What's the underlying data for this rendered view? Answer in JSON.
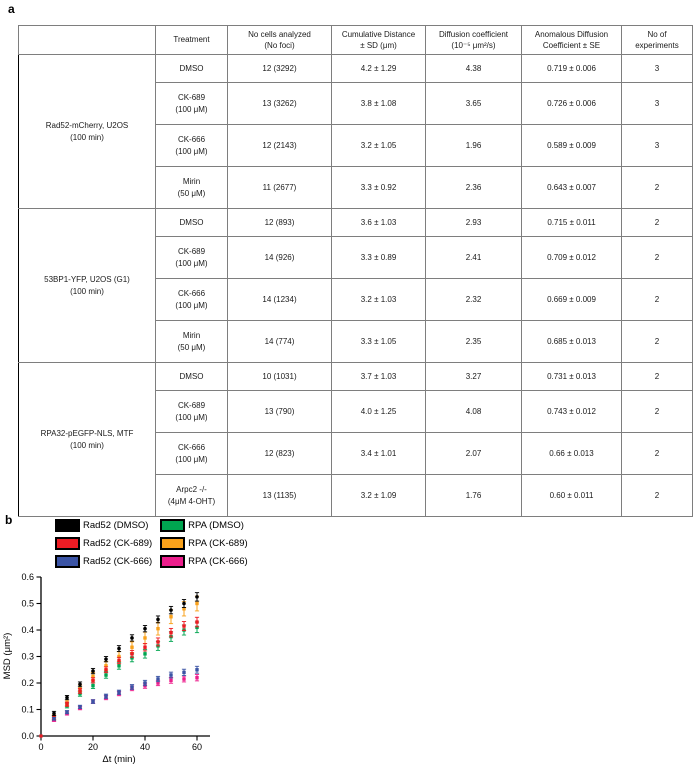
{
  "panel_a_label": "a",
  "panel_b_label": "b",
  "table": {
    "headers": [
      "",
      "Treatment",
      "No cells analyzed\n(No foci)",
      "Cumulative Distance\n± SD (μm)",
      "Diffusion coefficient\n(10⁻⁵ μm²/s)",
      "Anomalous Diffusion\nCoefficient ± SE",
      "No of\nexperiments"
    ],
    "groups": [
      {
        "label": "Rad52-mCherry, U2OS\n(100 min)",
        "rows": [
          {
            "treatment": "DMSO",
            "cells_analyzed": "12 (3292)",
            "cumulative_distance": "4.2 ± 1.29",
            "diffusion_coefficient": "4.38",
            "anomalous_coefficient": "0.719 ± 0.006",
            "experiments": "3"
          },
          {
            "treatment": "CK-689\n(100 μM)",
            "cells_analyzed": "13 (3262)",
            "cumulative_distance": "3.8 ± 1.08",
            "diffusion_coefficient": "3.65",
            "anomalous_coefficient": "0.726 ± 0.006",
            "experiments": "3"
          },
          {
            "treatment": "CK-666\n(100 μM)",
            "cells_analyzed": "12 (2143)",
            "cumulative_distance": "3.2 ± 1.05",
            "diffusion_coefficient": "1.96",
            "anomalous_coefficient": "0.589 ± 0.009",
            "experiments": "3"
          },
          {
            "treatment": "Mirin\n(50 μM)",
            "cells_analyzed": "11 (2677)",
            "cumulative_distance": "3.3 ± 0.92",
            "diffusion_coefficient": "2.36",
            "anomalous_coefficient": "0.643 ± 0.007",
            "experiments": "2"
          }
        ]
      },
      {
        "label": "53BP1-YFP, U2OS (G1)\n(100 min)",
        "rows": [
          {
            "treatment": "DMSO",
            "cells_analyzed": "12 (893)",
            "cumulative_distance": "3.6 ± 1.03",
            "diffusion_coefficient": "2.93",
            "anomalous_coefficient": "0.715 ± 0.011",
            "experiments": "2"
          },
          {
            "treatment": "CK-689\n(100 μM)",
            "cells_analyzed": "14 (926)",
            "cumulative_distance": "3.3 ± 0.89",
            "diffusion_coefficient": "2.41",
            "anomalous_coefficient": "0.709 ± 0.012",
            "experiments": "2"
          },
          {
            "treatment": "CK-666\n(100 μM)",
            "cells_analyzed": "14 (1234)",
            "cumulative_distance": "3.2 ± 1.03",
            "diffusion_coefficient": "2.32",
            "anomalous_coefficient": "0.669 ± 0.009",
            "experiments": "2"
          },
          {
            "treatment": "Mirin\n(50 μM)",
            "cells_analyzed": "14 (774)",
            "cumulative_distance": "3.3 ± 1.05",
            "diffusion_coefficient": "2.35",
            "anomalous_coefficient": "0.685 ± 0.013",
            "experiments": "2"
          }
        ]
      },
      {
        "label": "RPA32-pEGFP-NLS, MTF\n(100 min)",
        "rows": [
          {
            "treatment": "DMSO",
            "cells_analyzed": "10 (1031)",
            "cumulative_distance": "3.7 ± 1.03",
            "diffusion_coefficient": "3.27",
            "anomalous_coefficient": "0.731 ± 0.013",
            "experiments": "2"
          },
          {
            "treatment": "CK-689\n(100 μM)",
            "cells_analyzed": "13 (790)",
            "cumulative_distance": "4.0 ± 1.25",
            "diffusion_coefficient": "4.08",
            "anomalous_coefficient": "0.743 ± 0.012",
            "experiments": "2"
          },
          {
            "treatment": "CK-666\n(100 μM)",
            "cells_analyzed": "12 (823)",
            "cumulative_distance": "3.4 ± 1.01",
            "diffusion_coefficient": "2.07",
            "anomalous_coefficient": "0.66 ± 0.013",
            "experiments": "2"
          },
          {
            "treatment": "Arpc2 -/-\n(4μM 4-OHT)",
            "cells_analyzed": "13 (1135)",
            "cumulative_distance": "3.2 ± 1.09",
            "diffusion_coefficient": "1.76",
            "anomalous_coefficient": "0.60 ± 0.011",
            "experiments": "2"
          }
        ]
      }
    ]
  },
  "chart_data": {
    "type": "scatter",
    "title": "",
    "xlabel": "Δt (min)",
    "ylabel": "MSD (μm²)",
    "xlim": [
      0,
      65
    ],
    "ylim": [
      0,
      0.6
    ],
    "xticks": [
      0,
      20,
      40,
      60
    ],
    "yticks": [
      0.0,
      0.1,
      0.2,
      0.3,
      0.4,
      0.5,
      0.6
    ],
    "grid": false,
    "legend_position": "above-left",
    "x": [
      5,
      10,
      15,
      20,
      25,
      30,
      35,
      40,
      45,
      50,
      55,
      60
    ],
    "series": [
      {
        "name": "Rad52 (DMSO)",
        "color": "#000000",
        "marker": "circle",
        "values": [
          0.085,
          0.145,
          0.195,
          0.245,
          0.29,
          0.33,
          0.37,
          0.405,
          0.44,
          0.475,
          0.5,
          0.525
        ],
        "errors": [
          0.008,
          0.008,
          0.009,
          0.01,
          0.01,
          0.011,
          0.012,
          0.012,
          0.013,
          0.014,
          0.015,
          0.016
        ]
      },
      {
        "name": "Rad52 (CK-689)",
        "color": "#ed1c24",
        "marker": "square",
        "values": [
          0.07,
          0.12,
          0.17,
          0.21,
          0.25,
          0.285,
          0.31,
          0.335,
          0.355,
          0.39,
          0.415,
          0.43
        ],
        "errors": [
          0.007,
          0.008,
          0.009,
          0.01,
          0.011,
          0.012,
          0.013,
          0.014,
          0.015,
          0.016,
          0.017,
          0.018
        ]
      },
      {
        "name": "Rad52 (CK-666)",
        "color": "#3b54a5",
        "marker": "square",
        "values": [
          0.065,
          0.09,
          0.11,
          0.13,
          0.15,
          0.165,
          0.185,
          0.2,
          0.215,
          0.23,
          0.24,
          0.25
        ],
        "errors": [
          0.005,
          0.006,
          0.006,
          0.007,
          0.008,
          0.008,
          0.009,
          0.01,
          0.01,
          0.011,
          0.012,
          0.013
        ]
      },
      {
        "name": "RPA (DMSO)",
        "color": "#00a550",
        "marker": "square",
        "values": [
          0.065,
          0.115,
          0.16,
          0.19,
          0.23,
          0.265,
          0.295,
          0.31,
          0.34,
          0.375,
          0.4,
          0.41
        ],
        "errors": [
          0.008,
          0.009,
          0.01,
          0.011,
          0.012,
          0.013,
          0.015,
          0.016,
          0.017,
          0.018,
          0.019,
          0.02
        ]
      },
      {
        "name": "RPA (CK-689)",
        "color": "#f9a11b",
        "marker": "square",
        "values": [
          0.07,
          0.125,
          0.18,
          0.225,
          0.265,
          0.3,
          0.335,
          0.37,
          0.405,
          0.45,
          0.48,
          0.5
        ],
        "errors": [
          0.009,
          0.01,
          0.012,
          0.014,
          0.016,
          0.018,
          0.02,
          0.022,
          0.024,
          0.026,
          0.027,
          0.028
        ]
      },
      {
        "name": "RPA (CK-666)",
        "color": "#ec1e8c",
        "marker": "square",
        "values": [
          0.06,
          0.085,
          0.105,
          0.13,
          0.145,
          0.16,
          0.18,
          0.19,
          0.2,
          0.21,
          0.215,
          0.22
        ],
        "errors": [
          0.005,
          0.006,
          0.006,
          0.007,
          0.008,
          0.008,
          0.009,
          0.01,
          0.01,
          0.011,
          0.011,
          0.012
        ]
      }
    ],
    "origin_point": {
      "x": 0,
      "y": 0,
      "color": "#ed1c24"
    }
  }
}
